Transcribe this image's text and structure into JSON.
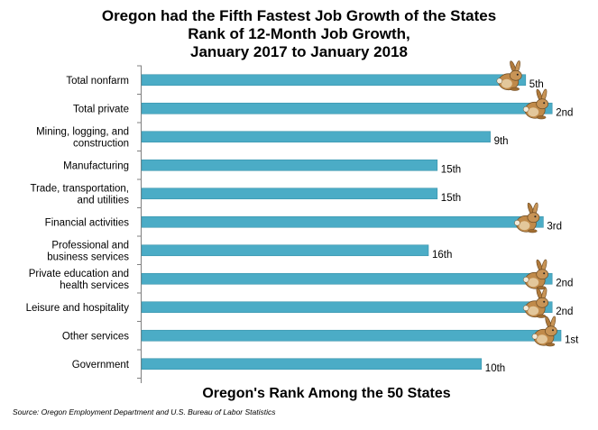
{
  "title_lines": [
    "Oregon had the Fifth Fastest Job Growth of the States",
    "Rank of 12-Month Job Growth,",
    "January 2017 to January 2018"
  ],
  "source": "Source: Oregon Employment Department and U.S. Bureau of Labor Statistics",
  "colors": {
    "bar": "#4bacc6",
    "bar_edge": "#3a93ab"
  },
  "icon": "rabbit-icon",
  "chart_data": {
    "type": "bar",
    "orientation": "horizontal",
    "xlabel": "Oregon's Rank Among the 50 States",
    "ylabel": "",
    "categories": [
      [
        "Total nonfarm"
      ],
      [
        "Total private"
      ],
      [
        "Mining, logging, and",
        "construction"
      ],
      [
        "Manufacturing"
      ],
      [
        "Trade, transportation,",
        "and utilities"
      ],
      [
        "Financial activities"
      ],
      [
        "Professional and",
        "business services"
      ],
      [
        "Private education and",
        "health services"
      ],
      [
        "Leisure and hospitality"
      ],
      [
        "Other services"
      ],
      [
        "Government"
      ]
    ],
    "ranks": [
      5,
      2,
      9,
      15,
      15,
      3,
      16,
      2,
      2,
      1,
      10
    ],
    "labels": [
      "5th",
      "2nd",
      "9th",
      "15th",
      "15th",
      "3rd",
      "16th",
      "2nd",
      "2nd",
      "1st",
      "10th"
    ],
    "rabbit_on": [
      true,
      true,
      false,
      false,
      false,
      true,
      false,
      true,
      true,
      true,
      false
    ]
  }
}
